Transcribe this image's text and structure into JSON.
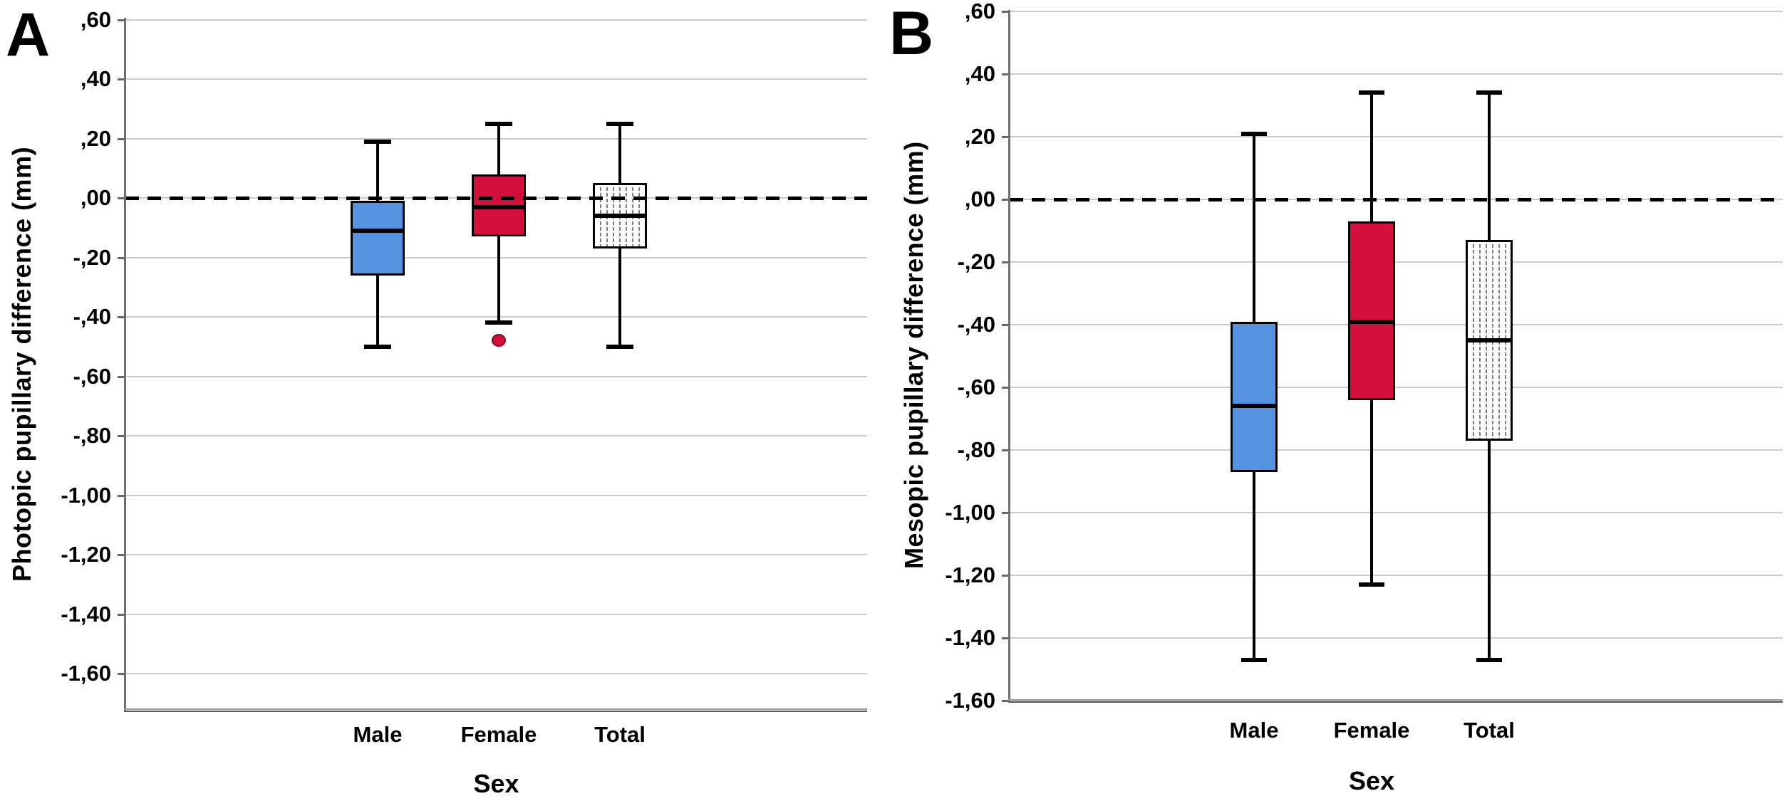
{
  "figure_type": "two-panel box plot figure",
  "colors": {
    "male_fill": "#5592E0",
    "female_fill": "#D40F3C",
    "total_fill": "#FFFFFF",
    "total_pattern_line": "#7d7d7d",
    "box_border": "#000000",
    "gridline": "#cbcbcb",
    "axis_line": "#6f6f6f",
    "reference_line": "#000000"
  },
  "chart_data": [
    {
      "type": "box",
      "panel_letter": "A",
      "ylabel": "Photopic pupillary difference (mm)",
      "xlabel": "Sex",
      "categories": [
        "Male",
        "Female",
        "Total"
      ],
      "y_tick_labels": [
        ",60",
        ",40",
        ",20",
        ",00",
        "-,20",
        "-,40",
        "-,60",
        "-,80",
        "-1,00",
        "-1,20",
        "-1,40",
        "-1,60"
      ],
      "y_tick_values": [
        0.6,
        0.4,
        0.2,
        0.0,
        -0.2,
        -0.4,
        -0.6,
        -0.8,
        -1.0,
        -1.2,
        -1.4,
        -1.6
      ],
      "ylim": [
        -1.72,
        0.6
      ],
      "reference_line": 0.0,
      "reference_line_style": "dashed",
      "grid": true,
      "legend": false,
      "series": [
        {
          "name": "Male",
          "whisker_low": -0.5,
          "q1": -0.26,
          "median": -0.11,
          "q3": -0.01,
          "whisker_high": 0.19,
          "outliers": [],
          "fill": "#5592E0",
          "pattern": "solid"
        },
        {
          "name": "Female",
          "whisker_low": -0.42,
          "q1": -0.13,
          "median": -0.03,
          "q3": 0.08,
          "whisker_high": 0.25,
          "outliers": [
            -0.48
          ],
          "outlier_border": "#7E0A26",
          "fill": "#D40F3C",
          "pattern": "solid"
        },
        {
          "name": "Total",
          "whisker_low": -0.5,
          "q1": -0.17,
          "median": -0.06,
          "q3": 0.05,
          "whisker_high": 0.25,
          "outliers": [],
          "fill": "#FFFFFF",
          "pattern": "dotted-lines"
        }
      ]
    },
    {
      "type": "box",
      "panel_letter": "B",
      "ylabel": "Mesopic pupillary difference (mm)",
      "xlabel": "Sex",
      "categories": [
        "Male",
        "Female",
        "Total"
      ],
      "y_tick_labels": [
        ",60",
        ",40",
        ",20",
        ",00",
        "-,20",
        "-,40",
        "-,60",
        "-,80",
        "-1,00",
        "-1,20",
        "-1,40",
        "-1,60"
      ],
      "y_tick_values": [
        0.6,
        0.4,
        0.2,
        0.0,
        -0.2,
        -0.4,
        -0.6,
        -0.8,
        -1.0,
        -1.2,
        -1.4,
        -1.6
      ],
      "ylim": [
        -1.62,
        0.6
      ],
      "reference_line": 0.0,
      "reference_line_style": "dashed",
      "grid": true,
      "legend": false,
      "series": [
        {
          "name": "Male",
          "whisker_low": -1.47,
          "q1": -0.87,
          "median": -0.66,
          "q3": -0.39,
          "whisker_high": 0.21,
          "outliers": [],
          "fill": "#5592E0",
          "pattern": "solid"
        },
        {
          "name": "Female",
          "whisker_low": -1.23,
          "q1": -0.64,
          "median": -0.39,
          "q3": -0.07,
          "whisker_high": 0.34,
          "outliers": [],
          "fill": "#D40F3C",
          "pattern": "solid"
        },
        {
          "name": "Total",
          "whisker_low": -1.47,
          "q1": -0.77,
          "median": -0.45,
          "q3": -0.13,
          "whisker_high": 0.34,
          "outliers": [],
          "fill": "#FFFFFF",
          "pattern": "dotted-lines"
        }
      ]
    }
  ]
}
